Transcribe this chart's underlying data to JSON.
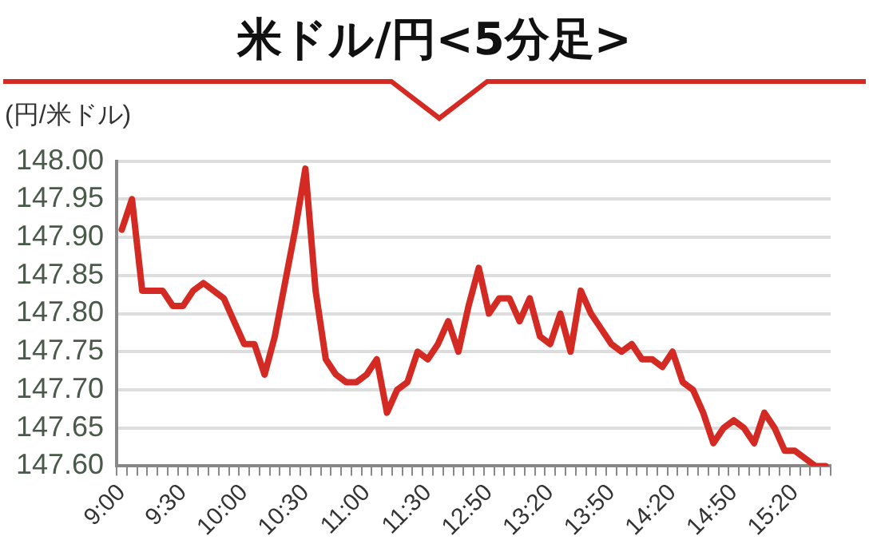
{
  "chart_data": {
    "type": "line",
    "title": "米ドル/円<5分足>",
    "ylabel": "(円/米ドル)",
    "categories": [
      "9:00",
      null,
      null,
      null,
      null,
      null,
      "9:30",
      null,
      null,
      null,
      null,
      null,
      "10:00",
      null,
      null,
      null,
      null,
      null,
      "10:30",
      null,
      null,
      null,
      null,
      null,
      "11:00",
      null,
      null,
      null,
      null,
      null,
      "11:30",
      null,
      null,
      null,
      null,
      null,
      "12:50",
      null,
      null,
      null,
      null,
      null,
      "13:20",
      null,
      null,
      null,
      null,
      null,
      "13:50",
      null,
      null,
      null,
      null,
      null,
      "14:20",
      null,
      null,
      null,
      null,
      null,
      "14:50",
      null,
      null,
      null,
      null,
      null,
      "15:20",
      null,
      null,
      null
    ],
    "series": [
      {
        "color": "#d42a24",
        "values": [
          147.91,
          147.95,
          147.83,
          147.83,
          147.83,
          147.81,
          147.81,
          147.83,
          147.84,
          147.83,
          147.82,
          147.79,
          147.76,
          147.76,
          147.72,
          147.77,
          147.84,
          147.91,
          147.99,
          147.83,
          147.74,
          147.72,
          147.71,
          147.71,
          147.72,
          147.74,
          147.67,
          147.7,
          147.71,
          147.75,
          147.74,
          147.76,
          147.79,
          147.75,
          147.81,
          147.86,
          147.8,
          147.82,
          147.82,
          147.79,
          147.82,
          147.77,
          147.76,
          147.8,
          147.75,
          147.83,
          147.8,
          147.78,
          147.76,
          147.75,
          147.76,
          147.74,
          147.74,
          147.73,
          147.75,
          147.71,
          147.7,
          147.67,
          147.63,
          147.65,
          147.66,
          147.65,
          147.63,
          147.67,
          147.65,
          147.62,
          147.62,
          147.61,
          147.6,
          147.6
        ]
      }
    ],
    "ylim": [
      147.6,
      148
    ],
    "yticks": [
      {
        "value": 147.6,
        "label": "147.60"
      },
      {
        "value": 147.65,
        "label": "147.65"
      },
      {
        "value": 147.7,
        "label": "147.70"
      },
      {
        "value": 147.75,
        "label": "147.75"
      },
      {
        "value": 147.8,
        "label": "147.80"
      },
      {
        "value": 147.85,
        "label": "147.85"
      },
      {
        "value": 147.9,
        "label": "147.90"
      },
      {
        "value": 147.95,
        "label": "147.95"
      },
      {
        "value": 148,
        "label": "148.00"
      }
    ],
    "grid": "y",
    "legend": false,
    "marker": "none",
    "line_style": "solid"
  }
}
